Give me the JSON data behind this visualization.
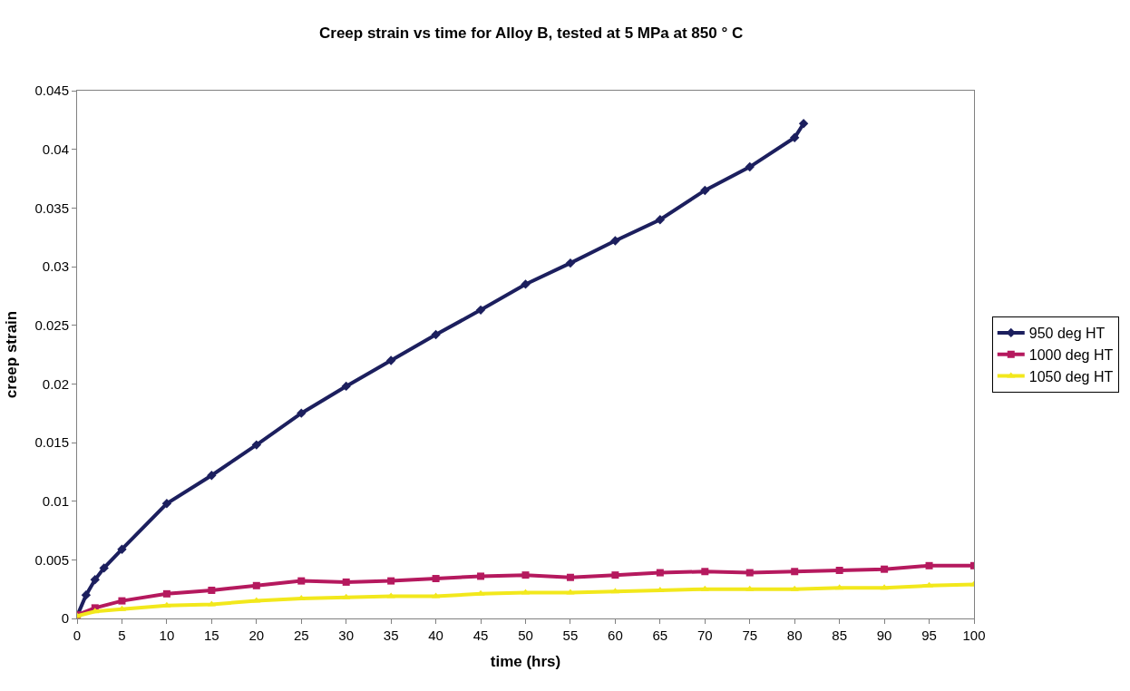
{
  "chart_data": {
    "type": "line",
    "title": "Creep strain vs time for Alloy B, tested at 5 MPa at 850 ° C",
    "xlabel": "time (hrs)",
    "ylabel": "creep strain",
    "xlim": [
      0,
      100
    ],
    "xticks": [
      0,
      5,
      10,
      15,
      20,
      25,
      30,
      35,
      40,
      45,
      50,
      55,
      60,
      65,
      70,
      75,
      80,
      85,
      90,
      95,
      100
    ],
    "ylim": [
      0,
      0.045
    ],
    "yticks": [
      0,
      0.005,
      0.01,
      0.015,
      0.02,
      0.025,
      0.03,
      0.035,
      0.04,
      0.045
    ],
    "grid": false,
    "legend": "right",
    "line_style": "solid",
    "series": [
      {
        "name": "950 deg HT",
        "color": "#1c1f5e",
        "marker": "diamond",
        "x": [
          0,
          1,
          2,
          3,
          5,
          10,
          15,
          20,
          25,
          30,
          35,
          40,
          45,
          50,
          55,
          60,
          65,
          70,
          75,
          80,
          81
        ],
        "values": [
          0.0002,
          0.002,
          0.0033,
          0.0043,
          0.0059,
          0.0098,
          0.0122,
          0.0148,
          0.0175,
          0.0198,
          0.022,
          0.0242,
          0.0263,
          0.0285,
          0.0303,
          0.0322,
          0.034,
          0.0365,
          0.0385,
          0.041,
          0.0422
        ]
      },
      {
        "name": "1000 deg HT",
        "color": "#b5195e",
        "marker": "square",
        "x": [
          0,
          2,
          5,
          10,
          15,
          20,
          25,
          30,
          35,
          40,
          45,
          50,
          55,
          60,
          65,
          70,
          75,
          80,
          85,
          90,
          95,
          100
        ],
        "values": [
          0.0003,
          0.0009,
          0.0015,
          0.0021,
          0.0024,
          0.0028,
          0.0032,
          0.0031,
          0.0032,
          0.0034,
          0.0036,
          0.0037,
          0.0035,
          0.0037,
          0.0039,
          0.004,
          0.0039,
          0.004,
          0.0041,
          0.0042,
          0.0045,
          0.0045
        ]
      },
      {
        "name": "1050 deg HT",
        "color": "#f2e81c",
        "marker": "triangle",
        "x": [
          0,
          2,
          5,
          10,
          15,
          20,
          25,
          30,
          35,
          40,
          45,
          50,
          55,
          60,
          65,
          70,
          75,
          80,
          85,
          90,
          95,
          100
        ],
        "values": [
          0.0002,
          0.0006,
          0.0008,
          0.0011,
          0.0012,
          0.0015,
          0.0017,
          0.0018,
          0.0019,
          0.0019,
          0.0021,
          0.0022,
          0.0022,
          0.0023,
          0.0024,
          0.0025,
          0.0025,
          0.0025,
          0.0026,
          0.0026,
          0.0028,
          0.0029
        ]
      }
    ]
  }
}
